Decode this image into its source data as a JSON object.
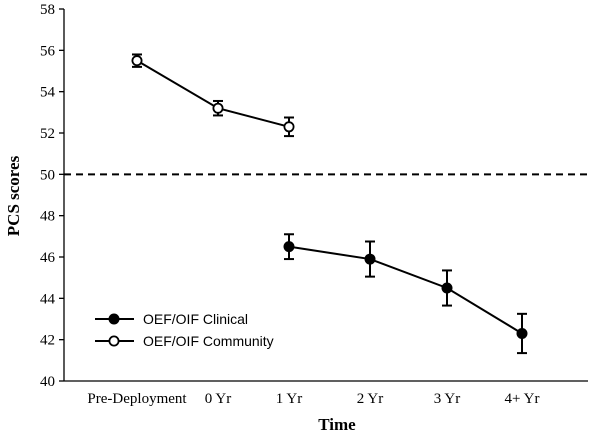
{
  "chart_data": {
    "type": "line",
    "title": "",
    "xlabel": "Time",
    "ylabel": "PCS scores",
    "categories": [
      "Pre-Deployment",
      "0 Yr",
      "1 Yr",
      "2 Yr",
      "3 Yr",
      "4+ Yr"
    ],
    "ylim": [
      40,
      58
    ],
    "yticks": [
      40,
      42,
      44,
      46,
      48,
      50,
      52,
      54,
      56,
      58
    ],
    "reference_line": {
      "y": 50,
      "style": "dashed"
    },
    "grid": false,
    "legend_position": "bottom-left",
    "series": [
      {
        "name": "OEF/OIF Clinical",
        "marker": "filled-circle",
        "values": [
          null,
          null,
          46.5,
          45.9,
          44.5,
          42.3
        ],
        "error": [
          null,
          null,
          0.6,
          0.85,
          0.85,
          0.95
        ]
      },
      {
        "name": "OEF/OIF Community",
        "marker": "open-circle",
        "values": [
          55.5,
          53.2,
          52.3,
          null,
          null,
          null
        ],
        "error": [
          0.3,
          0.35,
          0.45,
          null,
          null,
          null
        ]
      }
    ],
    "colors": {
      "line": "#000000",
      "background": "#ffffff"
    }
  }
}
